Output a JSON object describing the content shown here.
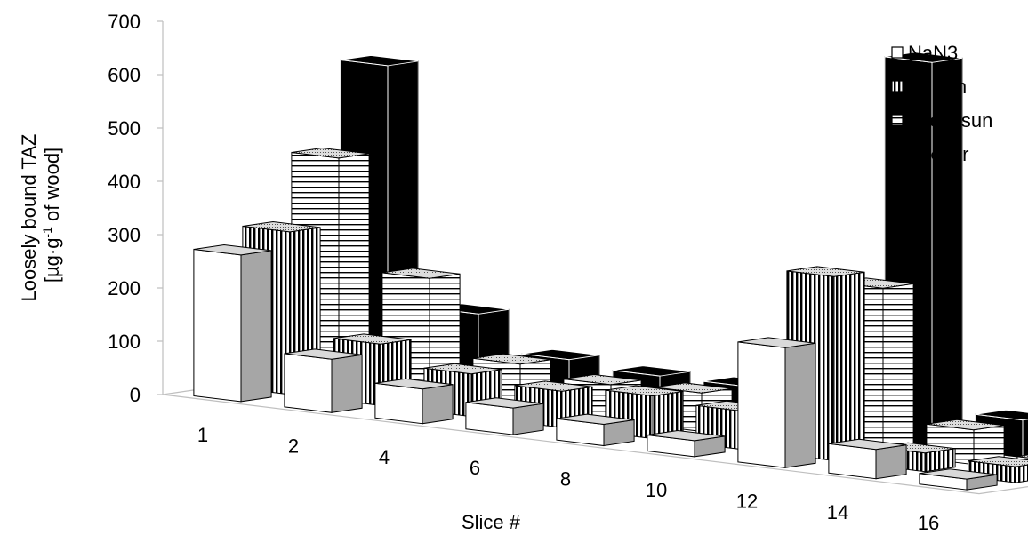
{
  "chart_data": {
    "type": "bar",
    "subtype": "3d-clustered-bar",
    "title": "",
    "xlabel": "Slice #",
    "ylabel_line1": "Loosely bound TAZ",
    "ylabel_line2_pre": "[µg·g",
    "ylabel_line2_sup": "-1",
    "ylabel_line2_post": " of wood]",
    "ylim": [
      0,
      700
    ],
    "yticks": [
      "0",
      "100",
      "200",
      "300",
      "400",
      "500",
      "600",
      "700"
    ],
    "categories": [
      "1",
      "2",
      "4",
      "6",
      "8",
      "10",
      "12",
      "14",
      "16"
    ],
    "legend_position": "top-right",
    "series": [
      {
        "name": "NaN3",
        "pattern": "white",
        "values": [
          275,
          100,
          65,
          50,
          40,
          30,
          225,
          55,
          20
        ]
      },
      {
        "name": "no sun",
        "pattern": "vertical-stripes",
        "values": [
          305,
          115,
          80,
          68,
          80,
          72,
          345,
          35,
          30
        ]
      },
      {
        "name": "direct sun",
        "pattern": "horizontal-stripes",
        "values": [
          430,
          225,
          85,
          67,
          72,
          43,
          310,
          65,
          25
        ]
      },
      {
        "name": "freezer",
        "pattern": "black",
        "values": [
          590,
          145,
          80,
          70,
          70,
          55,
          720,
          70,
          40
        ]
      }
    ]
  }
}
